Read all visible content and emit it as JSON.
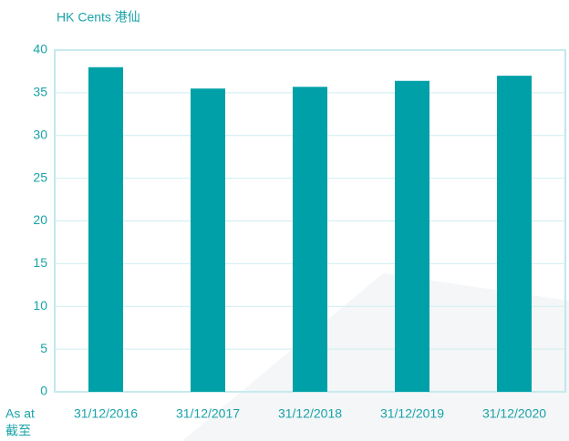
{
  "chart_data": {
    "type": "bar",
    "ylabel": "HK Cents 港仙",
    "xlabel": [
      "As at",
      "截至"
    ],
    "categories": [
      "31/12/2016",
      "31/12/2017",
      "31/12/2018",
      "31/12/2019",
      "31/12/2020"
    ],
    "values": [
      38.0,
      35.5,
      35.7,
      36.4,
      37.0
    ],
    "color": "#00a0a8",
    "ylim": [
      0,
      40
    ],
    "yticks": [
      0,
      5,
      10,
      15,
      20,
      25,
      30,
      35,
      40
    ],
    "grid": true
  }
}
